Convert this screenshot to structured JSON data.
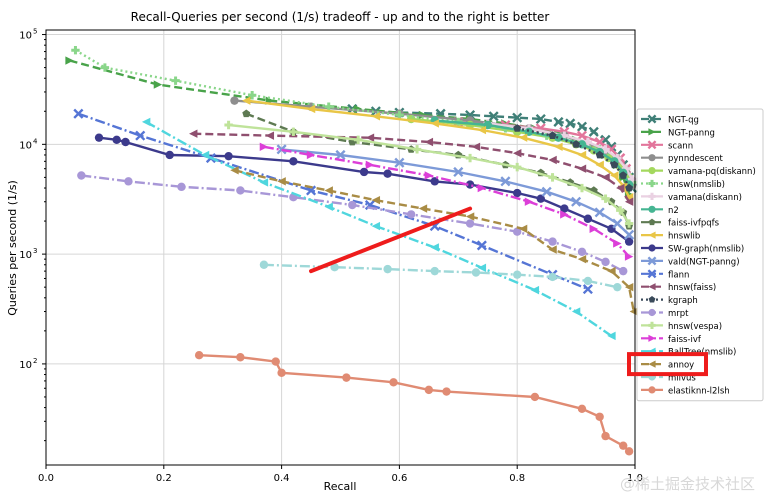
{
  "chart_data": {
    "type": "line",
    "title": "Recall-Queries per second (1/s) tradeoff - up and to the right is better",
    "xlabel": "Recall",
    "ylabel": "Queries per second (1/s)",
    "xlim": [
      0.0,
      1.0
    ],
    "ylim": [
      12,
      110000
    ],
    "yscale": "log",
    "grid": true,
    "legend_position": "right",
    "x_ticks": [
      {
        "value": 0.0,
        "label": "0.0"
      },
      {
        "value": 0.2,
        "label": "0.2"
      },
      {
        "value": 0.4,
        "label": "0.4"
      },
      {
        "value": 0.6,
        "label": "0.6"
      },
      {
        "value": 0.8,
        "label": "0.8"
      },
      {
        "value": 1.0,
        "label": "1.0"
      }
    ],
    "y_ticks": [
      {
        "value": 100,
        "label": "10",
        "exp": "2"
      },
      {
        "value": 1000,
        "label": "10",
        "exp": "3"
      },
      {
        "value": 10000,
        "label": "10",
        "exp": "4"
      },
      {
        "value": 100000,
        "label": "10",
        "exp": "5"
      }
    ],
    "series": [
      {
        "name": "NGT-qg",
        "color": "#3f7f77",
        "marker": "x",
        "dash": "8,4",
        "x": [
          0.52,
          0.56,
          0.6,
          0.67,
          0.72,
          0.76,
          0.8,
          0.84,
          0.87,
          0.89,
          0.91,
          0.93,
          0.95,
          0.96,
          0.97,
          0.98,
          0.99,
          0.995
        ],
        "y": [
          21000,
          20000,
          19500,
          19000,
          18500,
          18000,
          17500,
          17000,
          16000,
          15500,
          14500,
          13000,
          11000,
          9500,
          8000,
          6500,
          5000,
          4000
        ]
      },
      {
        "name": "NGT-panng",
        "color": "#49a34a",
        "marker": ">",
        "dash": "8,4",
        "x": [
          0.04,
          0.19,
          0.38,
          0.53,
          0.64,
          0.72,
          0.78,
          0.83,
          0.87,
          0.9,
          0.93,
          0.95,
          0.97,
          0.98,
          0.99
        ],
        "y": [
          58000,
          35000,
          25000,
          21000,
          18500,
          17000,
          15500,
          14000,
          12500,
          11000,
          9500,
          8000,
          6500,
          5000,
          3500
        ]
      },
      {
        "name": "scann",
        "color": "#e2759b",
        "marker": "x",
        "dash": "",
        "x": [
          0.7,
          0.78,
          0.84,
          0.88,
          0.91,
          0.94,
          0.96,
          0.975,
          0.985,
          0.993
        ],
        "y": [
          16000,
          15000,
          14000,
          13000,
          12000,
          10500,
          9000,
          7500,
          6000,
          4500
        ]
      },
      {
        "name": "pynndescent",
        "color": "#8e8e8e",
        "marker": "o",
        "dash": "",
        "x": [
          0.32,
          0.45,
          0.6,
          0.72,
          0.82,
          0.88,
          0.92,
          0.95,
          0.97,
          0.985,
          0.995
        ],
        "y": [
          25000,
          22000,
          19000,
          16500,
          14000,
          12000,
          10000,
          8500,
          7000,
          5500,
          4200
        ]
      },
      {
        "name": "vamana-pq(diskann)",
        "color": "#a4d85e",
        "marker": "o",
        "dash": "",
        "x": [
          0.62,
          0.72,
          0.8,
          0.86,
          0.9,
          0.93,
          0.955,
          0.975,
          0.99
        ],
        "y": [
          17000,
          15000,
          13000,
          11500,
          10000,
          8800,
          7500,
          6200,
          5000
        ]
      },
      {
        "name": "hnsw(nmslib)",
        "color": "#8ad68a",
        "marker": "P",
        "dash": "2,3",
        "x": [
          0.05,
          0.1,
          0.22,
          0.35,
          0.48,
          0.6,
          0.7,
          0.78,
          0.85,
          0.9,
          0.94,
          0.97,
          0.985,
          0.995
        ],
        "y": [
          72000,
          50000,
          38000,
          28000,
          22000,
          18500,
          16000,
          14000,
          12000,
          10500,
          9000,
          7500,
          6000,
          4500
        ]
      },
      {
        "name": "vamana(diskann)",
        "color": "#ead1e2",
        "marker": "P",
        "dash": "",
        "x": [
          0.75,
          0.82,
          0.88,
          0.92,
          0.95,
          0.97,
          0.985,
          0.995
        ],
        "y": [
          15500,
          14000,
          12000,
          10500,
          9000,
          7500,
          6000,
          4800
        ]
      },
      {
        "name": "n2",
        "color": "#45b592",
        "marker": "o",
        "dash": "",
        "x": [
          0.66,
          0.75,
          0.82,
          0.87,
          0.91,
          0.94,
          0.965,
          0.98,
          0.99
        ],
        "y": [
          16500,
          15000,
          13000,
          11500,
          10000,
          8500,
          7000,
          5500,
          4300
        ]
      },
      {
        "name": "faiss-ivfpqfs",
        "color": "#5e7a52",
        "marker": "p",
        "dash": "8,4",
        "x": [
          0.34,
          0.42,
          0.52,
          0.62,
          0.7,
          0.78,
          0.84,
          0.89,
          0.93,
          0.96,
          0.98,
          0.99
        ],
        "y": [
          19000,
          13000,
          10500,
          9000,
          8000,
          6500,
          5500,
          4500,
          3800,
          3000,
          2400,
          1800
        ]
      },
      {
        "name": "hnswlib",
        "color": "#e9c647",
        "marker": "<",
        "dash": "",
        "x": [
          0.34,
          0.45,
          0.56,
          0.66,
          0.74,
          0.81,
          0.87,
          0.91,
          0.94,
          0.965,
          0.98,
          0.99
        ],
        "y": [
          25000,
          21000,
          18000,
          15500,
          13500,
          11500,
          9500,
          8000,
          6500,
          5200,
          4200,
          3300
        ]
      },
      {
        "name": "SW-graph(nmslib)",
        "color": "#3c3a8c",
        "marker": "o",
        "dash": "",
        "x": [
          0.09,
          0.12,
          0.135,
          0.21,
          0.31,
          0.42,
          0.54,
          0.58,
          0.66,
          0.72,
          0.8,
          0.84,
          0.88,
          0.92,
          0.96,
          0.99
        ],
        "y": [
          11500,
          11000,
          10500,
          8000,
          7800,
          7000,
          5600,
          5400,
          4600,
          4300,
          3600,
          3200,
          2600,
          2100,
          1700,
          1300
        ]
      },
      {
        "name": "vald(NGT-panng)",
        "color": "#7d9ad8",
        "marker": "x",
        "dash": "",
        "x": [
          0.4,
          0.5,
          0.6,
          0.7,
          0.78,
          0.85,
          0.9,
          0.94,
          0.97,
          0.99
        ],
        "y": [
          9000,
          8000,
          6800,
          5600,
          4600,
          3700,
          3000,
          2400,
          1900,
          1500
        ]
      },
      {
        "name": "flann",
        "color": "#5575d5",
        "marker": "x",
        "dash": "10,3,2,3",
        "x": [
          0.055,
          0.16,
          0.28,
          0.45,
          0.55,
          0.66,
          0.74,
          0.86,
          0.92
        ],
        "y": [
          19000,
          12000,
          7500,
          3800,
          2800,
          1800,
          1200,
          650,
          480
        ]
      },
      {
        "name": "hnsw(faiss)",
        "color": "#8f4f6f",
        "marker": "<",
        "dash": "8,4",
        "x": [
          0.25,
          0.38,
          0.55,
          0.65,
          0.73,
          0.8,
          0.86,
          0.91,
          0.95,
          0.975,
          0.99
        ],
        "y": [
          12500,
          12000,
          11500,
          10500,
          9500,
          8300,
          7200,
          6000,
          5000,
          4000,
          3000
        ]
      },
      {
        "name": "kgraph",
        "color": "#3a4a5a",
        "marker": "p",
        "dash": "2,3",
        "x": [
          0.8,
          0.86,
          0.9,
          0.94,
          0.965,
          0.98,
          0.99
        ],
        "y": [
          14000,
          12000,
          10000,
          8000,
          6500,
          5200,
          4000
        ]
      },
      {
        "name": "mrpt",
        "color": "#a897d7",
        "marker": "o",
        "dash": "10,3,2,3",
        "x": [
          0.06,
          0.14,
          0.23,
          0.33,
          0.42,
          0.52,
          0.62,
          0.72,
          0.8,
          0.86,
          0.91,
          0.95,
          0.98
        ],
        "y": [
          5200,
          4600,
          4100,
          3800,
          3300,
          2800,
          2300,
          1900,
          1600,
          1300,
          1050,
          850,
          700
        ]
      },
      {
        "name": "hnsw(vespa)",
        "color": "#bfe39a",
        "marker": "P",
        "dash": "",
        "x": [
          0.31,
          0.42,
          0.53,
          0.63,
          0.72,
          0.8,
          0.86,
          0.91,
          0.95,
          0.975,
          0.99
        ],
        "y": [
          15000,
          13000,
          11000,
          9000,
          7500,
          6200,
          5000,
          4000,
          3200,
          2500,
          1900
        ]
      },
      {
        "name": "faiss-ivf",
        "color": "#dc3fd8",
        "marker": ">",
        "dash": "10,3,2,3",
        "x": [
          0.37,
          0.45,
          0.55,
          0.65,
          0.74,
          0.82,
          0.88,
          0.93,
          0.97,
          0.99
        ],
        "y": [
          9500,
          8000,
          6500,
          5200,
          4000,
          3000,
          2300,
          1700,
          1250,
          950
        ]
      },
      {
        "name": "BallTree(nmslib)",
        "color": "#4fd6de",
        "marker": "<",
        "dash": "10,3,2,3",
        "x": [
          0.17,
          0.27,
          0.37,
          0.48,
          0.56,
          0.66,
          0.74,
          0.83,
          0.9,
          0.96
        ],
        "y": [
          16000,
          8000,
          4500,
          2700,
          1800,
          1150,
          750,
          470,
          300,
          180
        ]
      },
      {
        "name": "annoy",
        "color": "#a98c45",
        "marker": "<",
        "dash": "8,4",
        "x": [
          0.32,
          0.4,
          0.48,
          0.56,
          0.64,
          0.72,
          0.81,
          0.86,
          0.91,
          0.96,
          0.99,
          0.998
        ],
        "y": [
          5800,
          4600,
          3800,
          3100,
          2600,
          2200,
          1700,
          1100,
          900,
          700,
          500,
          300
        ]
      },
      {
        "name": "milvus",
        "color": "#9ed8d8",
        "marker": "o",
        "dash": "10,3,2,3",
        "x": [
          0.37,
          0.49,
          0.58,
          0.66,
          0.73,
          0.8,
          0.86,
          0.92,
          0.97
        ],
        "y": [
          800,
          760,
          730,
          700,
          680,
          650,
          620,
          570,
          500
        ]
      },
      {
        "name": "elastiknn-l2lsh",
        "color": "#e08b73",
        "marker": "o",
        "dash": "",
        "x": [
          0.26,
          0.33,
          0.39,
          0.4,
          0.51,
          0.59,
          0.65,
          0.68,
          0.83,
          0.91,
          0.94,
          0.95,
          0.98,
          0.99
        ],
        "y": [
          120,
          115,
          105,
          83,
          75,
          68,
          58,
          56,
          50,
          39,
          33,
          22,
          18,
          16
        ]
      }
    ],
    "annotations": [
      {
        "type": "arrow",
        "color": "#ee1c1c",
        "from": [
          0.45,
          700
        ],
        "to": [
          0.72,
          2600
        ]
      },
      {
        "type": "highlight-box",
        "color": "#ee1c1c",
        "target": "annoy"
      }
    ],
    "watermark": "@稀土掘金技术社区"
  }
}
